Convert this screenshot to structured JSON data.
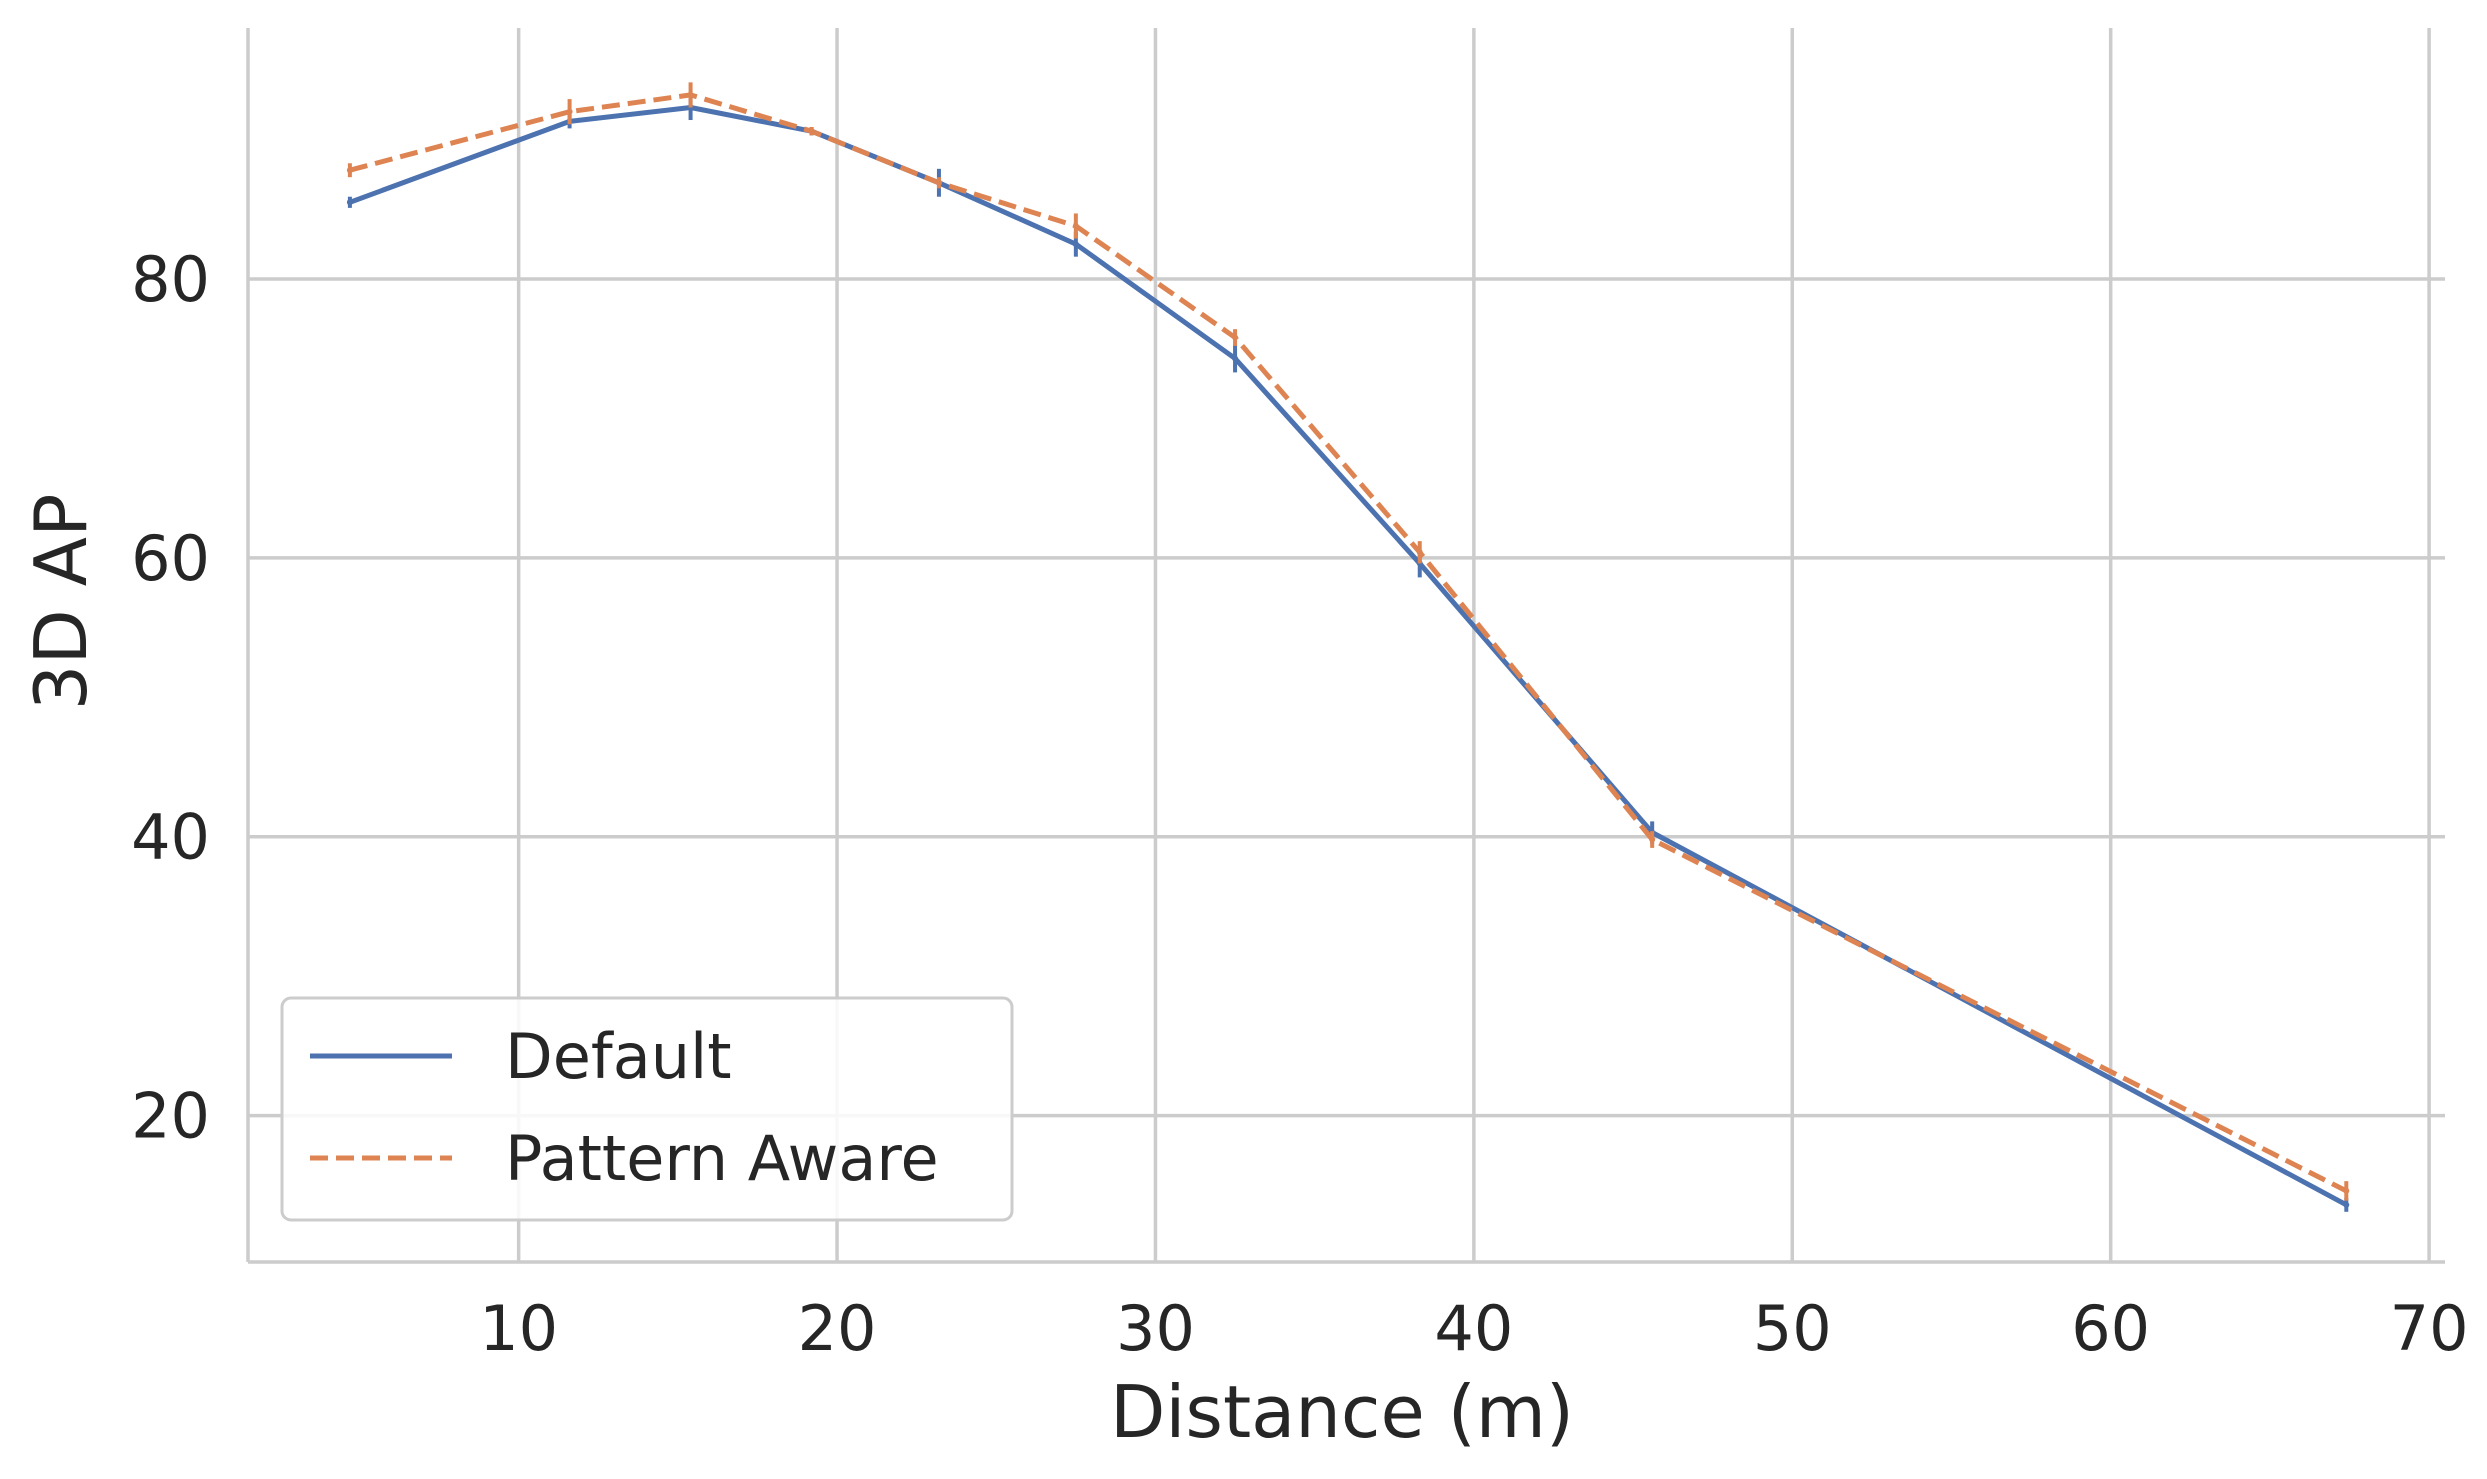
{
  "chart_data": {
    "type": "line",
    "title": "",
    "xlabel": "Distance (m)",
    "ylabel": "3D AP",
    "xlim": [
      1.5,
      70.5
    ],
    "ylim": [
      9.5,
      98
    ],
    "xticks": [
      10,
      20,
      30,
      40,
      50,
      60,
      70
    ],
    "yticks": [
      20,
      40,
      60,
      80
    ],
    "grid": true,
    "legend_position": "lower-left",
    "series": [
      {
        "name": "Default",
        "color": "#4c72b0",
        "dash": "solid",
        "x": [
          4.7,
          11.6,
          15.4,
          19.2,
          23.2,
          27.5,
          32.5,
          38.3,
          45.6,
          67.4
        ],
        "y": [
          85.5,
          91.3,
          92.3,
          90.6,
          86.9,
          82.5,
          74.3,
          59.6,
          40.3,
          13.6
        ],
        "err": [
          0.4,
          0.5,
          0.9,
          0.3,
          1.0,
          0.9,
          1.0,
          1.0,
          0.8,
          0.5
        ]
      },
      {
        "name": "Pattern Aware",
        "color": "#dd8452",
        "dash": "dashed",
        "x": [
          4.7,
          11.6,
          15.4,
          19.2,
          23.2,
          27.5,
          32.5,
          38.3,
          45.6,
          67.4
        ],
        "y": [
          87.8,
          92.0,
          93.2,
          90.6,
          86.9,
          83.8,
          75.8,
          60.4,
          39.8,
          14.6
        ],
        "err": [
          0.5,
          0.9,
          0.9,
          0.3,
          0.4,
          0.9,
          0.6,
          0.8,
          0.6,
          0.7
        ]
      }
    ]
  }
}
